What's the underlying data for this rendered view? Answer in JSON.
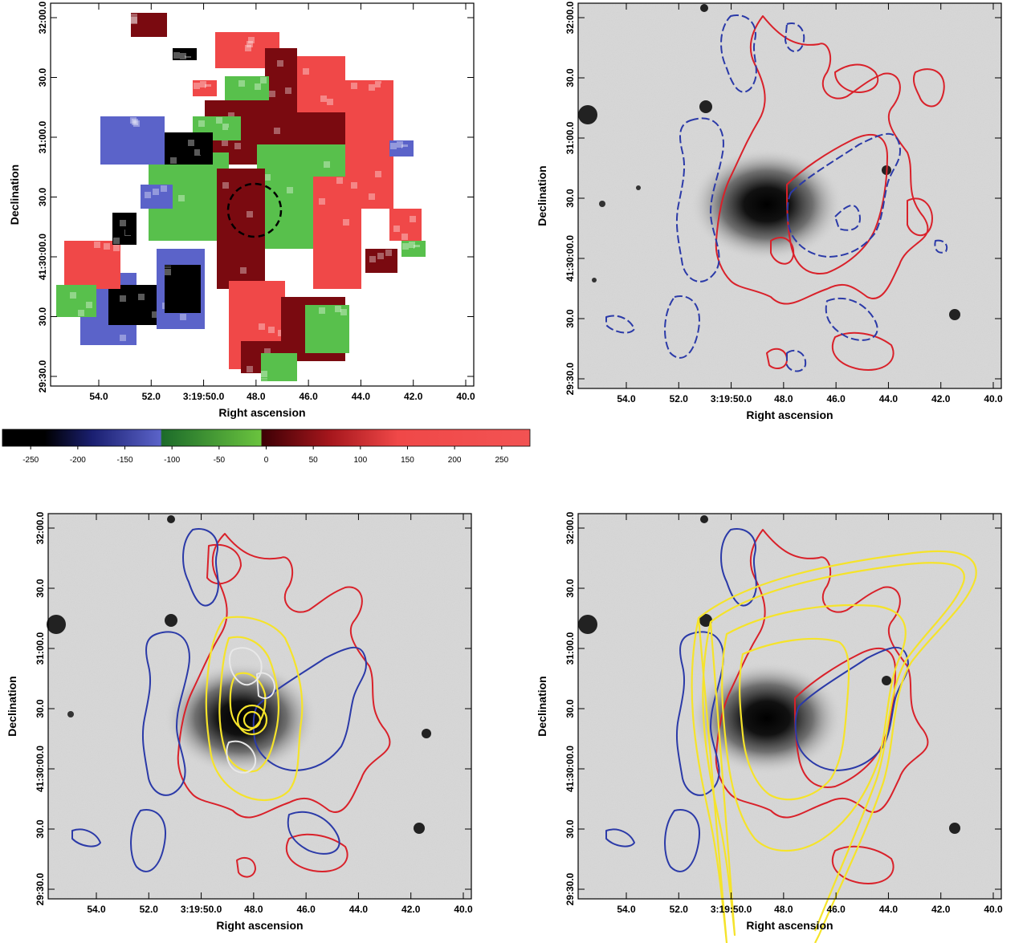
{
  "figure": {
    "panels": [
      {
        "id": "velocity-map",
        "xlabel": "Right ascension",
        "ylabel": "Declination",
        "xticks": [
          "54.0",
          "52.0",
          "3:19:50.0",
          "48.0",
          "46.0",
          "44.0",
          "42.0",
          "40.0"
        ],
        "yticks": [
          "32:00.0",
          "30.0",
          "31:00.0",
          "30.0",
          "41:30:00.0",
          "30.0",
          "29:30.0"
        ]
      },
      {
        "id": "contours-on-image",
        "xlabel": "Right ascension",
        "ylabel": "Declination",
        "xticks": [
          "54.0",
          "52.0",
          "3:19:50.0",
          "48.0",
          "46.0",
          "44.0",
          "42.0",
          "40.0"
        ],
        "yticks": [
          "32:00.0",
          "30.0",
          "31:00.0",
          "30.0",
          "41:30:00.0",
          "30.0",
          "29:30.0"
        ]
      },
      {
        "id": "contours-with-xray",
        "xlabel": "Right ascension",
        "ylabel": "Declination",
        "xticks": [
          "54.0",
          "52.0",
          "3:19:50.0",
          "48.0",
          "46.0",
          "44.0",
          "42.0",
          "40.0"
        ],
        "yticks": [
          "32:00.0",
          "30.0",
          "31:00.0",
          "30.0",
          "41:30:00.0",
          "30.0",
          "29:30.0"
        ]
      },
      {
        "id": "contours-with-radio",
        "xlabel": "Right ascension",
        "ylabel": "Declination",
        "xticks": [
          "54.0",
          "52.0",
          "3:19:50.0",
          "48.0",
          "46.0",
          "44.0",
          "42.0",
          "40.0"
        ],
        "yticks": [
          "32:00.0",
          "30.0",
          "31:00.0",
          "30.0",
          "41:30:00.0",
          "30.0",
          "29:30.0"
        ]
      }
    ],
    "colorbar": {
      "ticks": [
        "-250",
        "-200",
        "-150",
        "-100",
        "-50",
        "0",
        "50",
        "100",
        "150",
        "200",
        "250"
      ],
      "range": [
        -280,
        280
      ],
      "colors": {
        "black": "#000000",
        "blue": "#5b63c9",
        "green": "#58c04c",
        "dark_red": "#7a0a10",
        "red": "#f04848"
      }
    },
    "colors": {
      "redshift_contour": "#d9212a",
      "blueshift_contour": "#2b3aa8",
      "radio_contour": "#f5e32a",
      "xray_contour": "#e8e8e8",
      "background_image": "#d2d2d2"
    }
  }
}
